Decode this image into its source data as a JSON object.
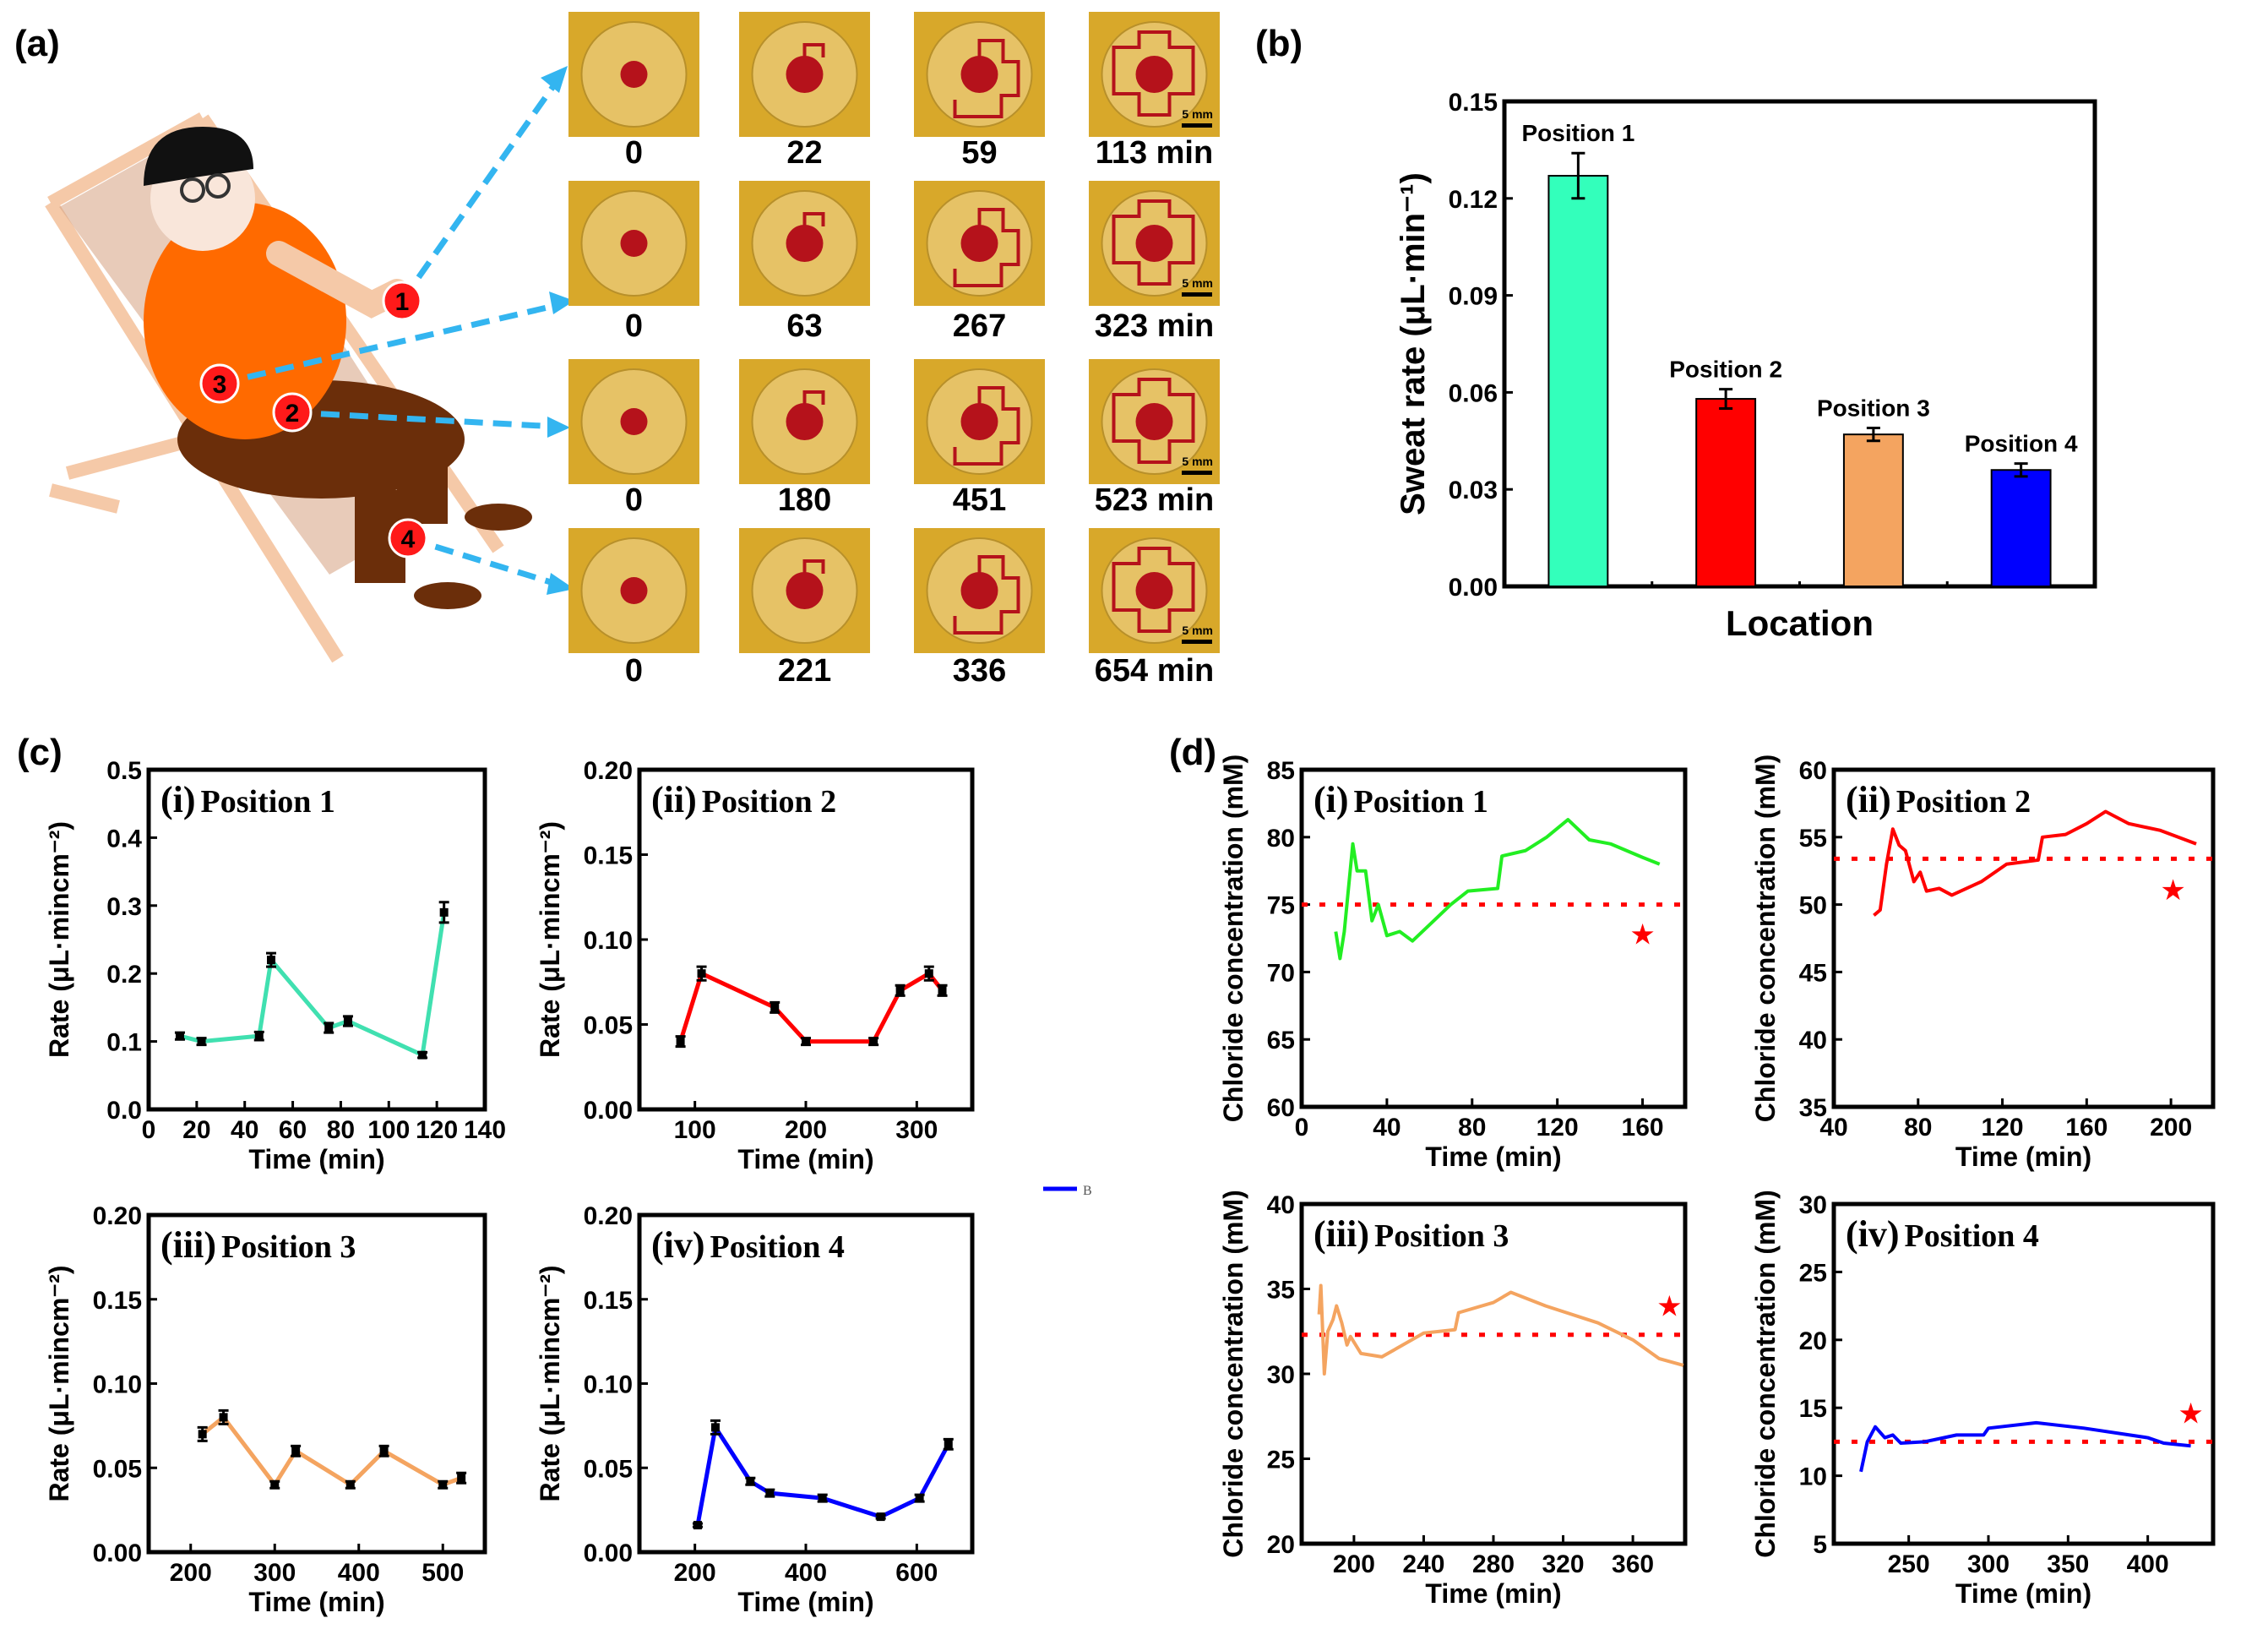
{
  "panel_labels": {
    "a": "(a)",
    "b": "(b)",
    "c": "(c)",
    "d": "(d)"
  },
  "illustration": {
    "markers": [
      "1",
      "2",
      "3",
      "4"
    ],
    "colors": {
      "marker": "#ff1a1a",
      "arrow": "#33b5f0",
      "shirt": "#ff6a00",
      "pants": "#6b2e0a",
      "chair": "#f5c9a8"
    }
  },
  "photo_grid": {
    "scale_bar": "5 mm",
    "rows": [
      {
        "position": "1",
        "times": [
          "0",
          "22",
          "59",
          "113 min"
        ]
      },
      {
        "position": "2",
        "times": [
          "0",
          "63",
          "267",
          "323 min"
        ]
      },
      {
        "position": "3",
        "times": [
          "0",
          "180",
          "451",
          "523 min"
        ]
      },
      {
        "position": "4",
        "times": [
          "0",
          "221",
          "336",
          "654 min"
        ]
      }
    ]
  },
  "chart_data": [
    {
      "id": "b",
      "type": "bar",
      "categories": [
        "Position 1",
        "Position 2",
        "Position 3",
        "Position 4"
      ],
      "values": [
        0.127,
        0.058,
        0.047,
        0.036
      ],
      "errors": [
        0.007,
        0.003,
        0.002,
        0.002
      ],
      "colors": [
        "#33ffbb",
        "#ff0000",
        "#f4a460",
        "#0000ff"
      ],
      "xlabel": "Location",
      "ylabel": "Sweat rate (μL·min⁻¹)",
      "ylim": [
        0,
        0.15
      ],
      "yticks": [
        "0.00",
        "0.03",
        "0.06",
        "0.09",
        "0.12",
        "0.15"
      ]
    },
    {
      "id": "c1",
      "type": "line",
      "title_num": "(i)",
      "title": "Position 1",
      "color": "#40e0b0",
      "x": [
        13,
        22,
        46,
        51,
        75,
        83,
        114,
        123
      ],
      "y": [
        0.108,
        0.1,
        0.108,
        0.22,
        0.12,
        0.13,
        0.08,
        0.29
      ],
      "errors": [
        0.005,
        0.005,
        0.006,
        0.01,
        0.007,
        0.007,
        0.004,
        0.015
      ],
      "xlim": [
        0,
        140
      ],
      "ylim": [
        0,
        0.5
      ],
      "xticks": [
        "0",
        "20",
        "40",
        "60",
        "80",
        "100",
        "120",
        "140"
      ],
      "yticks": [
        "0.0",
        "0.1",
        "0.2",
        "0.3",
        "0.4",
        "0.5"
      ],
      "xlabel": "Time (min)",
      "ylabel": "Rate (μL·mincm⁻²)"
    },
    {
      "id": "c2",
      "type": "line",
      "title_num": "(ii)",
      "title": "Position 2",
      "color": "#ff0000",
      "x": [
        87,
        106,
        172,
        200,
        261,
        285,
        311,
        323
      ],
      "y": [
        0.04,
        0.08,
        0.06,
        0.04,
        0.04,
        0.07,
        0.08,
        0.07
      ],
      "errors": [
        0.003,
        0.004,
        0.003,
        0.002,
        0.002,
        0.003,
        0.004,
        0.003
      ],
      "xlim": [
        50,
        350
      ],
      "ylim": [
        0,
        0.2
      ],
      "xticks": [
        "100",
        "200",
        "300"
      ],
      "yticks": [
        "0.00",
        "0.05",
        "0.10",
        "0.15",
        "0.20"
      ],
      "xlabel": "Time (min)",
      "ylabel": "Rate (μL·mincm⁻²)",
      "legend": "B",
      "legend_color": "#0000ff"
    },
    {
      "id": "c3",
      "type": "line",
      "title_num": "(iii)",
      "title": "Position 3",
      "color": "#f4a460",
      "x": [
        214,
        239,
        300,
        325,
        390,
        430,
        500,
        522
      ],
      "y": [
        0.07,
        0.08,
        0.04,
        0.06,
        0.04,
        0.06,
        0.04,
        0.044
      ],
      "errors": [
        0.004,
        0.004,
        0.002,
        0.003,
        0.002,
        0.003,
        0.002,
        0.003
      ],
      "xlim": [
        150,
        550
      ],
      "ylim": [
        0,
        0.2
      ],
      "xticks": [
        "200",
        "300",
        "400",
        "500"
      ],
      "yticks": [
        "0.00",
        "0.05",
        "0.10",
        "0.15",
        "0.20"
      ],
      "xlabel": "Time (min)",
      "ylabel": "Rate (μL·mincm⁻²)"
    },
    {
      "id": "c4",
      "type": "line",
      "title_num": "(iv)",
      "title": "Position 4",
      "color": "#0000ff",
      "x": [
        205,
        237,
        300,
        335,
        430,
        535,
        605,
        657
      ],
      "y": [
        0.016,
        0.074,
        0.042,
        0.035,
        0.032,
        0.021,
        0.032,
        0.064
      ],
      "errors": [
        0.001,
        0.004,
        0.002,
        0.002,
        0.002,
        0.001,
        0.002,
        0.003
      ],
      "xlim": [
        100,
        700
      ],
      "ylim": [
        0,
        0.2
      ],
      "xticks": [
        "200",
        "400",
        "600"
      ],
      "yticks": [
        "0.00",
        "0.05",
        "0.10",
        "0.15",
        "0.20"
      ],
      "xlabel": "Time (min)",
      "ylabel": "Rate (μL·mincm⁻²)"
    },
    {
      "id": "d1",
      "type": "line",
      "title_num": "(i)",
      "title": "Position 1",
      "color": "#22ee22",
      "x": [
        16,
        18,
        20,
        24,
        26,
        30,
        33,
        36,
        40,
        46,
        52,
        60,
        70,
        78,
        92,
        94,
        105,
        115,
        125,
        135,
        145,
        160,
        168
      ],
      "y": [
        73,
        71,
        73,
        79.5,
        77.5,
        77.5,
        73.8,
        75,
        72.7,
        73,
        72.3,
        73.5,
        75,
        76,
        76.2,
        78.6,
        79,
        80,
        81.3,
        79.8,
        79.5,
        78.5,
        78
      ],
      "reference": 75,
      "star": [
        160,
        72.8
      ],
      "xlim": [
        0,
        180
      ],
      "ylim": [
        60,
        85
      ],
      "xticks": [
        "0",
        "40",
        "80",
        "120",
        "160"
      ],
      "yticks": [
        "60",
        "65",
        "70",
        "75",
        "80",
        "85"
      ],
      "xlabel": "Time (min)",
      "ylabel": "Chloride concentration (mM)"
    },
    {
      "id": "d2",
      "type": "line",
      "title_num": "(ii)",
      "title": "Position 2",
      "color": "#ff0000",
      "x": [
        59,
        62,
        65,
        68,
        71,
        74,
        78,
        81,
        84,
        90,
        96,
        110,
        122,
        137,
        139,
        150,
        160,
        169,
        180,
        195,
        212
      ],
      "y": [
        49.2,
        49.6,
        53,
        55.6,
        54.4,
        54,
        51.7,
        52.4,
        51,
        51.2,
        50.7,
        51.7,
        53,
        53.3,
        55,
        55.2,
        56,
        56.9,
        56,
        55.5,
        54.5
      ],
      "reference": 53.4,
      "star": [
        201,
        51.1
      ],
      "xlim": [
        40,
        220
      ],
      "ylim": [
        35,
        60
      ],
      "xticks": [
        "40",
        "80",
        "120",
        "160",
        "200"
      ],
      "yticks": [
        "35",
        "40",
        "45",
        "50",
        "55",
        "60"
      ],
      "xlabel": "Time (min)",
      "ylabel": "Chloride concentration (mM)"
    },
    {
      "id": "d3",
      "type": "line",
      "title_num": "(iii)",
      "title": "Position 3",
      "color": "#f4a460",
      "x": [
        180,
        181,
        183,
        185,
        188,
        190,
        193,
        196,
        198,
        204,
        216,
        240,
        258,
        260,
        280,
        290,
        310,
        340,
        360,
        375,
        389
      ],
      "y": [
        33.5,
        35.2,
        30,
        32.5,
        33.2,
        34,
        33,
        31.7,
        32.2,
        31.2,
        31,
        32.4,
        32.6,
        33.6,
        34.2,
        34.8,
        34,
        33,
        32,
        30.9,
        30.5
      ],
      "reference": 32.3,
      "star": [
        381,
        34
      ],
      "xlim": [
        170,
        390
      ],
      "ylim": [
        20,
        40
      ],
      "xticks": [
        "200",
        "240",
        "280",
        "320",
        "360"
      ],
      "yticks": [
        "20",
        "25",
        "30",
        "35",
        "40"
      ],
      "xlabel": "Time (min)",
      "ylabel": "Chloride concentration (mM)"
    },
    {
      "id": "d4",
      "type": "line",
      "title_num": "(iv)",
      "title": "Position 4",
      "color": "#0000ff",
      "x": [
        220,
        224,
        229,
        235,
        240,
        245,
        260,
        280,
        297,
        300,
        330,
        360,
        400,
        410,
        427
      ],
      "y": [
        10.3,
        12.5,
        13.6,
        12.8,
        13,
        12.4,
        12.5,
        13,
        13,
        13.5,
        13.9,
        13.5,
        12.8,
        12.4,
        12.2
      ],
      "reference": 12.5,
      "star": [
        427,
        14.6
      ],
      "xlim": [
        203,
        441
      ],
      "ylim": [
        5,
        30
      ],
      "xticks": [
        "250",
        "300",
        "350",
        "400"
      ],
      "yticks": [
        "5",
        "10",
        "15",
        "20",
        "25",
        "30"
      ],
      "xlabel": "Time (min)",
      "ylabel": "Chloride concentration (mM)"
    }
  ]
}
